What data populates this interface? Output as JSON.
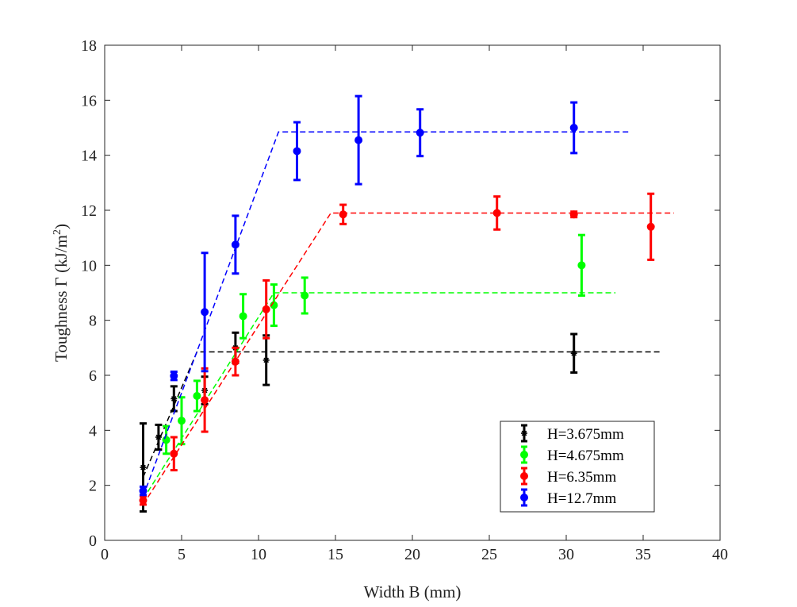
{
  "chart_data": {
    "type": "scatter",
    "title": "",
    "xlabel": "Width B (mm)",
    "ylabel_main": "Toughness Γ (kJ/m",
    "ylabel_sup": "2",
    "ylabel_close": ")",
    "xlim": [
      0,
      40
    ],
    "ylim": [
      0,
      18
    ],
    "xticks": [
      0,
      5,
      10,
      15,
      20,
      25,
      30,
      35,
      40
    ],
    "yticks": [
      0,
      2,
      4,
      6,
      8,
      10,
      12,
      14,
      16,
      18
    ],
    "xtick_labels": [
      "0",
      "5",
      "10",
      "15",
      "20",
      "25",
      "30",
      "35",
      "40"
    ],
    "ytick_labels": [
      "0",
      "2",
      "4",
      "6",
      "8",
      "10",
      "12",
      "14",
      "16",
      "18"
    ],
    "grid": false,
    "legend_position": "bottom-right",
    "series": [
      {
        "name": "H=3.675mm",
        "color": "#000000",
        "marker": "asterisk",
        "points": [
          {
            "x": 2.5,
            "y": 2.65,
            "err": 1.6
          },
          {
            "x": 3.5,
            "y": 3.75,
            "err": 0.45
          },
          {
            "x": 4.5,
            "y": 5.15,
            "err": 0.45
          },
          {
            "x": 6.5,
            "y": 5.45,
            "err": 0.5
          },
          {
            "x": 8.5,
            "y": 7.0,
            "err": 0.55
          },
          {
            "x": 10.5,
            "y": 6.55,
            "err": 0.9
          },
          {
            "x": 30.5,
            "y": 6.8,
            "err": 0.7
          }
        ],
        "fit": [
          [
            2.5,
            2.3
          ],
          [
            6.0,
            6.85
          ],
          [
            36.2,
            6.85
          ]
        ]
      },
      {
        "name": "H=4.675mm",
        "color": "#00ff00",
        "marker": "circle",
        "points": [
          {
            "x": 4.0,
            "y": 3.65,
            "err": 0.5
          },
          {
            "x": 5.0,
            "y": 4.35,
            "err": 0.85
          },
          {
            "x": 6.0,
            "y": 5.25,
            "err": 0.55
          },
          {
            "x": 9.0,
            "y": 8.15,
            "err": 0.8
          },
          {
            "x": 11.0,
            "y": 8.55,
            "err": 0.75
          },
          {
            "x": 13.0,
            "y": 8.9,
            "err": 0.65
          },
          {
            "x": 31.0,
            "y": 10.0,
            "err": 1.1
          }
        ],
        "fit": [
          [
            2.5,
            1.5
          ],
          [
            11.0,
            9.0
          ],
          [
            33.2,
            9.0
          ]
        ]
      },
      {
        "name": "H=6.35mm",
        "color": "#ff0000",
        "marker": "circle",
        "points": [
          {
            "x": 2.5,
            "y": 1.45,
            "err": 0.15
          },
          {
            "x": 4.5,
            "y": 3.15,
            "err": 0.6
          },
          {
            "x": 6.5,
            "y": 5.1,
            "err": 1.15
          },
          {
            "x": 8.5,
            "y": 6.5,
            "err": 0.5
          },
          {
            "x": 10.5,
            "y": 8.4,
            "err": 1.05
          },
          {
            "x": 15.5,
            "y": 11.85,
            "err": 0.35
          },
          {
            "x": 25.5,
            "y": 11.9,
            "err": 0.6
          },
          {
            "x": 30.5,
            "y": 11.85,
            "err": 0.1
          },
          {
            "x": 35.5,
            "y": 11.4,
            "err": 1.2
          }
        ],
        "fit": [
          [
            2.5,
            1.3
          ],
          [
            14.7,
            11.9
          ],
          [
            37.0,
            11.9
          ]
        ]
      },
      {
        "name": "H=12.7mm",
        "color": "#0000ff",
        "marker": "circle",
        "points": [
          {
            "x": 2.5,
            "y": 1.8,
            "err": 0.15
          },
          {
            "x": 4.5,
            "y": 5.98,
            "err": 0.15
          },
          {
            "x": 6.5,
            "y": 8.3,
            "err": 2.15
          },
          {
            "x": 8.5,
            "y": 10.75,
            "err": 1.05
          },
          {
            "x": 12.5,
            "y": 14.15,
            "err": 1.05
          },
          {
            "x": 16.5,
            "y": 14.55,
            "err": 1.6
          },
          {
            "x": 20.5,
            "y": 14.82,
            "err": 0.85
          },
          {
            "x": 30.5,
            "y": 15.0,
            "err": 0.92
          }
        ],
        "fit": [
          [
            2.5,
            1.6
          ],
          [
            11.3,
            14.85
          ],
          [
            34.2,
            14.85
          ]
        ]
      }
    ]
  }
}
